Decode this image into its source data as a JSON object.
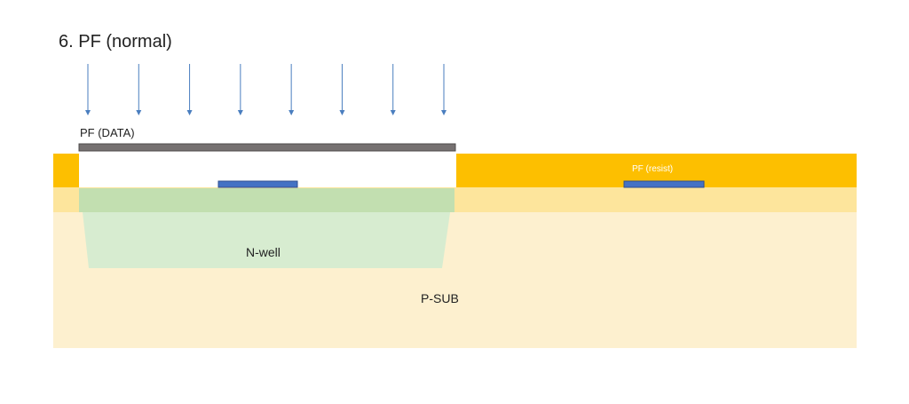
{
  "title": "6. PF (normal)",
  "labels": {
    "mask": "PF (DATA)",
    "resist": "PF (resist)",
    "well": "N-well",
    "substrate": "P-SUB"
  },
  "colors": {
    "substrate": "#fdf0cf",
    "upper_layer": "#fde59c",
    "resist": "#fdbf00",
    "n_well": "#d7ecd0",
    "n_well_top": "#c2dfb0",
    "pattern": "#4472c4",
    "pattern_edge": "#2f4f8f",
    "mask_bar": "#767171",
    "arrow": "#4a7ebf"
  },
  "exposure_arrows": 8,
  "shapes": {
    "mask_bar": "rectangle",
    "resist_layer": "rectangle",
    "exposed_opening": "rectangle",
    "n_well": "trapezoid",
    "patterns": "rectangle"
  }
}
